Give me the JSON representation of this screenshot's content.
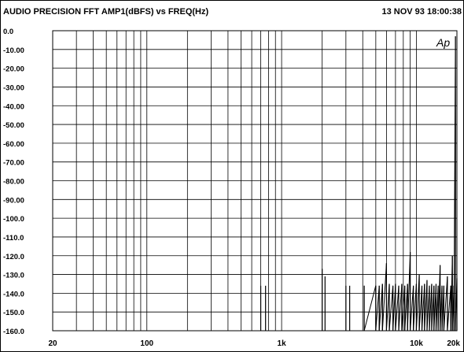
{
  "header": {
    "title": "AUDIO PRECISION FFT   AMP1(dBFS)  vs  FREQ(Hz)",
    "timestamp": "13 NOV 93 18:00:38"
  },
  "logo": "Ap",
  "chart_data": {
    "type": "line",
    "title": "AUDIO PRECISION FFT   AMP1(dBFS)  vs  FREQ(Hz)",
    "xlabel": "FREQ(Hz)",
    "ylabel": "AMP1(dBFS)",
    "x_scale": "log",
    "xlim": [
      20,
      20000
    ],
    "ylim": [
      -160,
      0
    ],
    "grid": true,
    "x_tick_labels": [
      {
        "value": 20,
        "label": "20"
      },
      {
        "value": 100,
        "label": "100"
      },
      {
        "value": 1000,
        "label": "1k"
      },
      {
        "value": 10000,
        "label": "10k"
      },
      {
        "value": 20000,
        "label": "20k"
      }
    ],
    "y_tick_labels": [
      {
        "value": 0,
        "label": "0.0"
      },
      {
        "value": -10,
        "label": "-10.00"
      },
      {
        "value": -20,
        "label": "-20.00"
      },
      {
        "value": -30,
        "label": "-30.00"
      },
      {
        "value": -40,
        "label": "-40.00"
      },
      {
        "value": -50,
        "label": "-50.00"
      },
      {
        "value": -60,
        "label": "-60.00"
      },
      {
        "value": -70,
        "label": "-70.00"
      },
      {
        "value": -80,
        "label": "-80.00"
      },
      {
        "value": -90,
        "label": "-90.00"
      },
      {
        "value": -100,
        "label": "-100.0"
      },
      {
        "value": -110,
        "label": "-110.0"
      },
      {
        "value": -120,
        "label": "-120.0"
      },
      {
        "value": -130,
        "label": "-130.0"
      },
      {
        "value": -140,
        "label": "-140.0"
      },
      {
        "value": -150,
        "label": "-150.0"
      },
      {
        "value": -160,
        "label": "-160.0"
      }
    ],
    "series": [
      {
        "values": [
          {
            "x": 700,
            "y": -136
          },
          {
            "x": 760,
            "y": -136
          },
          {
            "x": 2000,
            "y": -127
          },
          {
            "x": 2100,
            "y": -131
          },
          {
            "x": 3000,
            "y": -136
          },
          {
            "x": 3200,
            "y": -136
          },
          {
            "x": 4100,
            "y": -136
          },
          {
            "x": 5000,
            "y": -136
          },
          {
            "x": 5300,
            "y": -136
          },
          {
            "x": 5600,
            "y": -135
          },
          {
            "x": 6000,
            "y": -124
          },
          {
            "x": 6300,
            "y": -135
          },
          {
            "x": 6700,
            "y": -136
          },
          {
            "x": 7000,
            "y": -135
          },
          {
            "x": 7400,
            "y": -136
          },
          {
            "x": 7800,
            "y": -135
          },
          {
            "x": 8200,
            "y": -136
          },
          {
            "x": 8600,
            "y": -135
          },
          {
            "x": 9000,
            "y": -118
          },
          {
            "x": 9500,
            "y": -136
          },
          {
            "x": 10000,
            "y": -135
          },
          {
            "x": 10500,
            "y": -130
          },
          {
            "x": 11000,
            "y": -136
          },
          {
            "x": 11500,
            "y": -135
          },
          {
            "x": 12000,
            "y": -133
          },
          {
            "x": 12500,
            "y": -136
          },
          {
            "x": 13000,
            "y": -135
          },
          {
            "x": 13500,
            "y": -136
          },
          {
            "x": 14000,
            "y": -135
          },
          {
            "x": 14500,
            "y": -136
          },
          {
            "x": 15000,
            "y": -125
          },
          {
            "x": 15500,
            "y": -136
          },
          {
            "x": 16000,
            "y": -136
          },
          {
            "x": 17000,
            "y": -131
          },
          {
            "x": 18000,
            "y": -136
          },
          {
            "x": 18500,
            "y": -120
          },
          {
            "x": 19000,
            "y": -136
          },
          {
            "x": 19500,
            "y": -3
          },
          {
            "x": 20000,
            "y": -132
          }
        ]
      }
    ]
  }
}
